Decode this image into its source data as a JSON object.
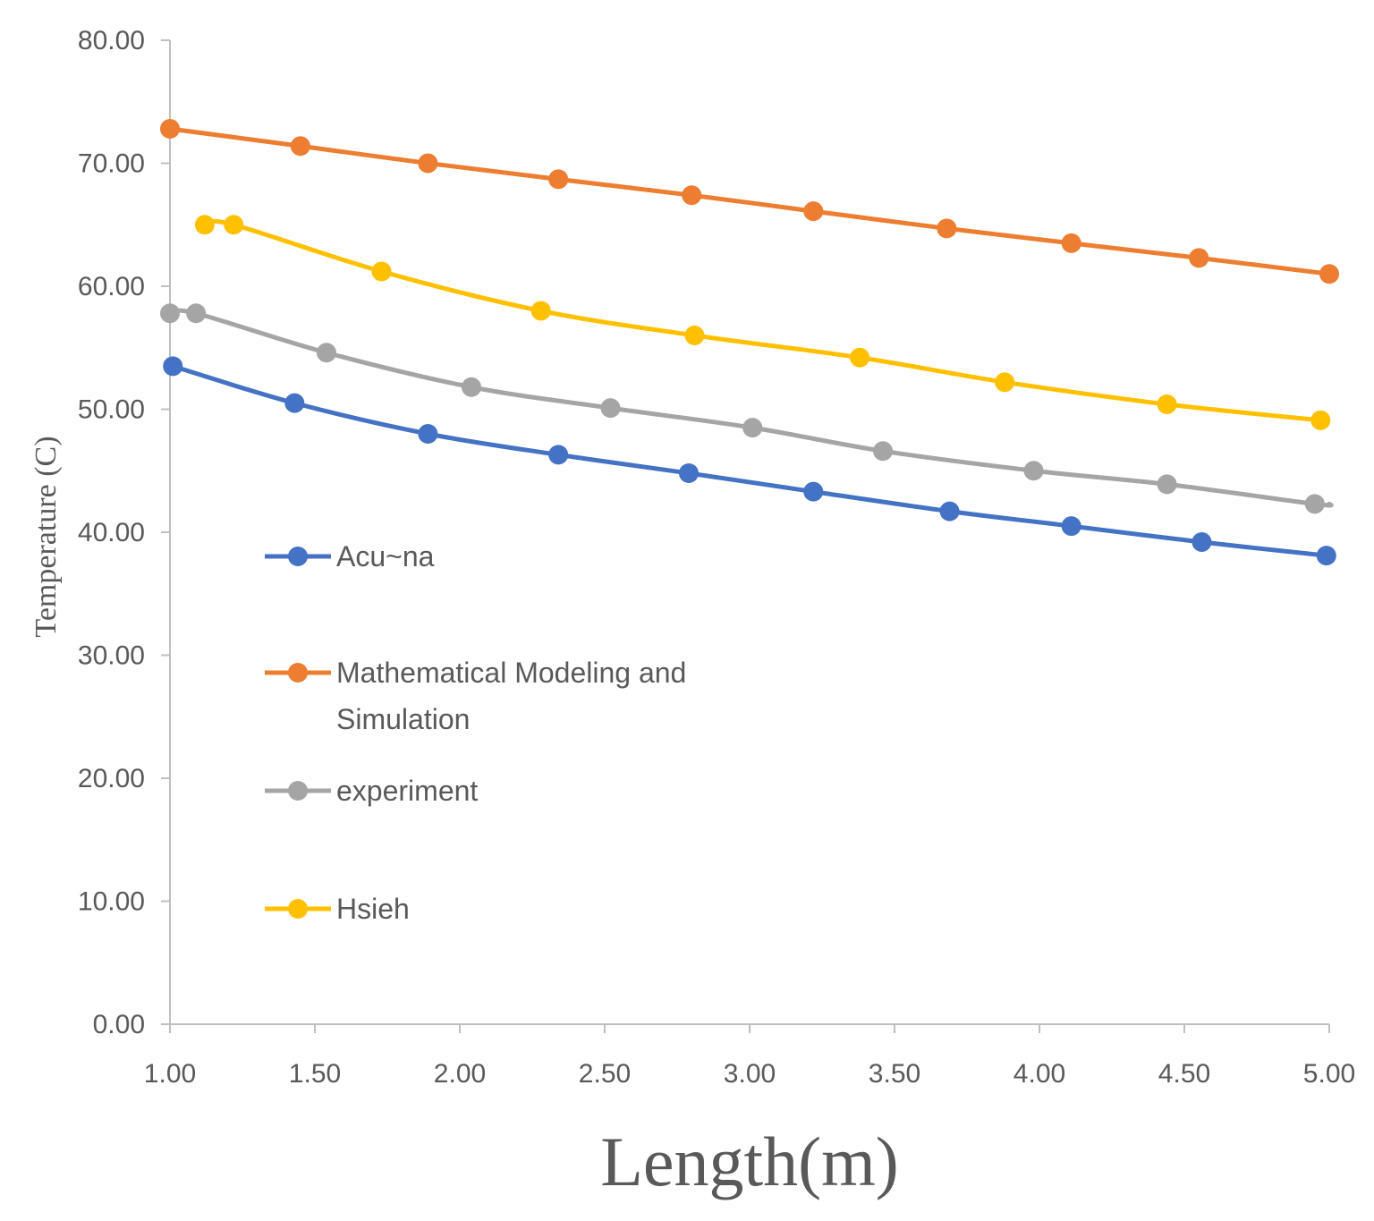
{
  "chart_data": {
    "type": "line",
    "title": "",
    "xlabel": "Length(m)",
    "ylabel": "Temperature (C)",
    "xlim": [
      1.0,
      5.0
    ],
    "ylim": [
      0,
      80
    ],
    "x_ticks": [
      "1.00",
      "1.50",
      "2.00",
      "2.50",
      "3.00",
      "3.50",
      "4.00",
      "4.50",
      "5.00"
    ],
    "y_ticks": [
      "0.00",
      "10.00",
      "20.00",
      "30.00",
      "40.00",
      "50.00",
      "60.00",
      "70.00",
      "80.00"
    ],
    "grid": false,
    "legend_position": "left-middle",
    "series": [
      {
        "name": "Acu~na",
        "color": "#4472c4",
        "x": [
          1.01,
          1.43,
          1.89,
          2.34,
          2.79,
          3.22,
          3.69,
          4.11,
          4.56,
          4.99
        ],
        "y": [
          53.5,
          50.5,
          48.0,
          46.3,
          44.8,
          43.3,
          41.7,
          40.5,
          39.2,
          38.1
        ]
      },
      {
        "name": "Mathematical Modeling and Simulation",
        "color": "#ed7d31",
        "x": [
          1.0,
          1.45,
          1.89,
          2.34,
          2.8,
          3.22,
          3.68,
          4.11,
          4.55,
          5.0
        ],
        "y": [
          72.8,
          71.4,
          70.0,
          68.7,
          67.4,
          66.1,
          64.7,
          63.5,
          62.3,
          61.0
        ]
      },
      {
        "name": "experiment",
        "color": "#a5a5a5",
        "x": [
          1.0,
          1.09,
          1.54,
          2.04,
          2.52,
          3.01,
          3.46,
          3.98,
          4.44,
          4.95,
          5.0
        ],
        "y": [
          57.8,
          57.8,
          54.6,
          51.8,
          50.1,
          48.5,
          46.6,
          45.0,
          43.9,
          42.3,
          42.3
        ]
      },
      {
        "name": "Hsieh",
        "color": "#ffc000",
        "x": [
          1.12,
          1.22,
          1.73,
          2.28,
          2.81,
          3.38,
          3.88,
          4.44,
          4.97
        ],
        "y": [
          65.0,
          65.0,
          61.2,
          58.0,
          56.0,
          54.2,
          52.2,
          50.4,
          49.1
        ]
      }
    ]
  }
}
